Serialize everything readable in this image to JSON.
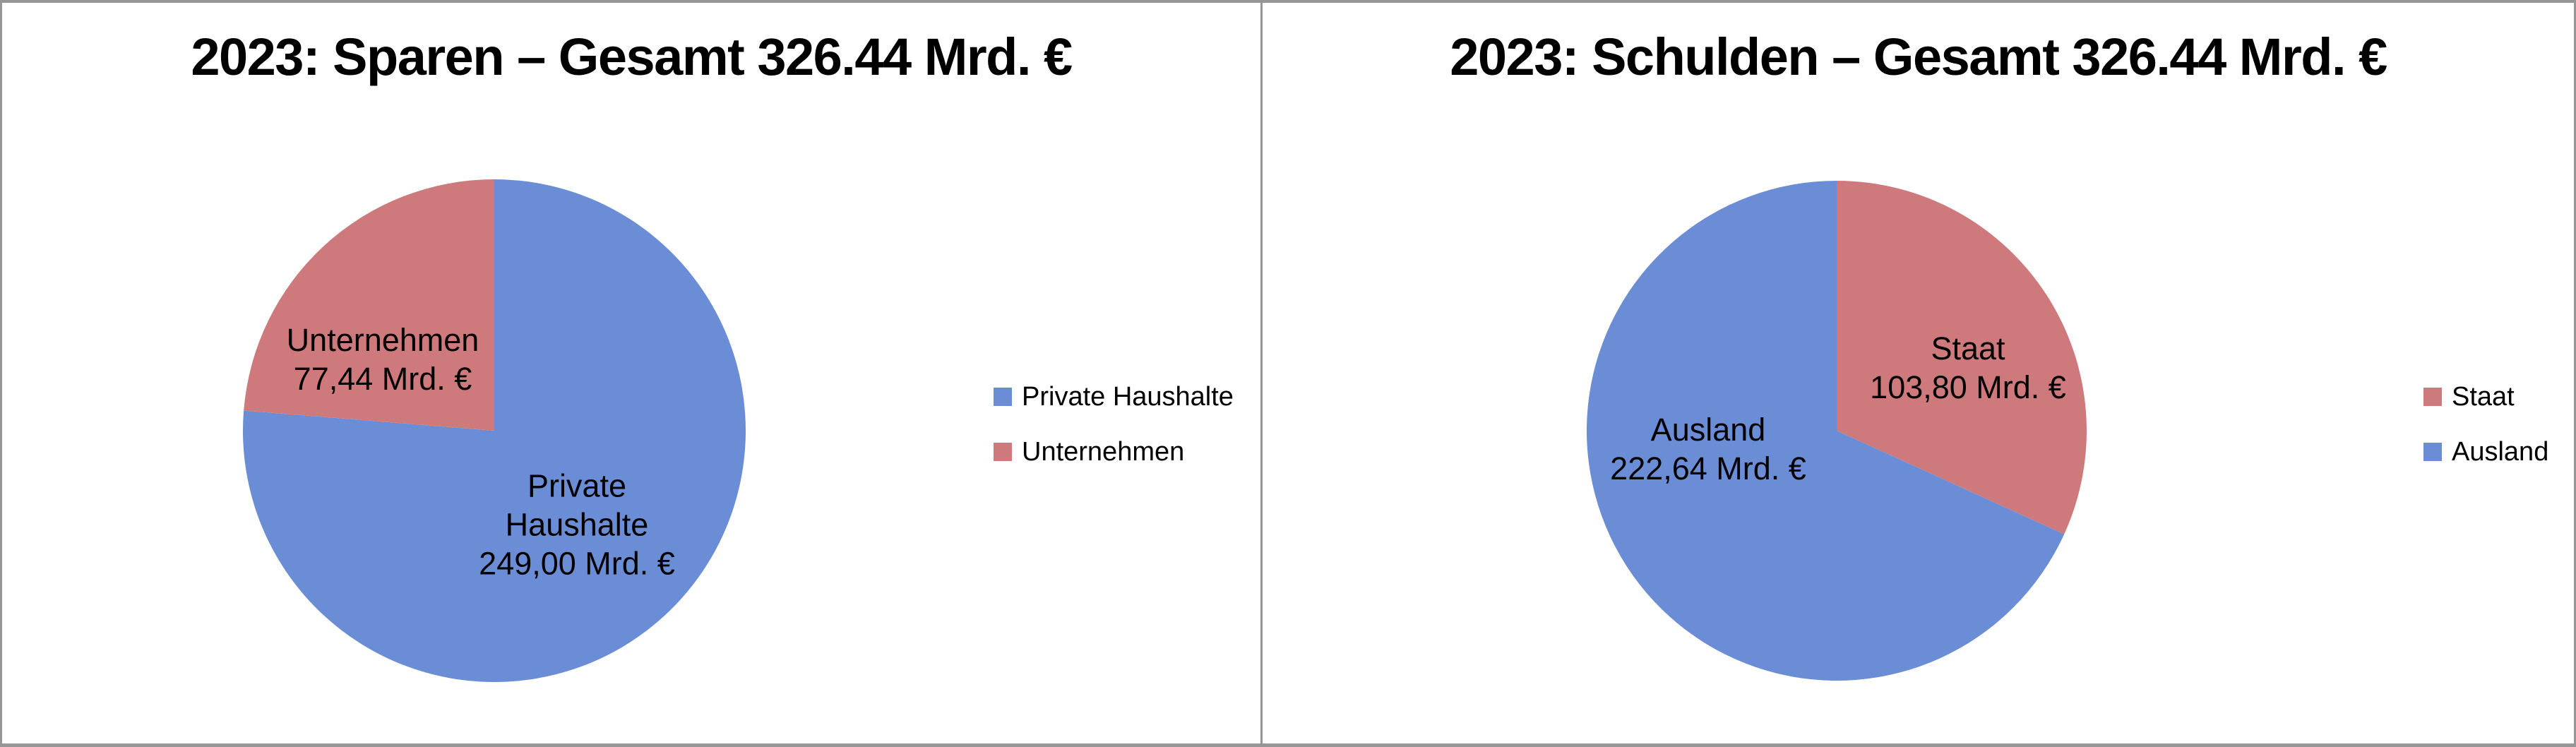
{
  "frame": {
    "background": "#ffffff",
    "border_color": "#969696"
  },
  "chart_data": [
    {
      "type": "pie",
      "title": "2023: Sparen – Gesamt 326.44 Mrd. €",
      "total": 326.44,
      "unit": "Mrd. €",
      "categories": [
        "Private Haushalte",
        "Unternehmen"
      ],
      "values": [
        249.0,
        77.44
      ],
      "start_angle_deg": 0,
      "direction": "clockwise",
      "legend_position": "right",
      "slices": [
        {
          "name": "Private Haushalte",
          "value": 249.0,
          "value_label": "249,00 Mrd. €",
          "color": "#6B8DD6"
        },
        {
          "name": "Unternehmen",
          "value": 77.44,
          "value_label": "77,44 Mrd. €",
          "color": "#CE7A7D"
        }
      ],
      "slice_labels": [
        {
          "lines": [
            "Private",
            "Haushalte",
            "249,00 Mrd. €"
          ]
        },
        {
          "lines": [
            "Unternehmen",
            "77,44 Mrd. €"
          ]
        }
      ],
      "legend": {
        "entries": [
          {
            "label": "Private Haushalte",
            "color": "#6B8DD6"
          },
          {
            "label": "Unternehmen",
            "color": "#CE7A7D"
          }
        ]
      }
    },
    {
      "type": "pie",
      "title": "2023: Schulden – Gesamt 326.44 Mrd. €",
      "total": 326.44,
      "unit": "Mrd. €",
      "categories": [
        "Staat",
        "Ausland"
      ],
      "values": [
        103.8,
        222.64
      ],
      "start_angle_deg": 0,
      "direction": "clockwise",
      "legend_position": "right",
      "slices": [
        {
          "name": "Staat",
          "value": 103.8,
          "value_label": "103,80 Mrd. €",
          "color": "#CE7A7D"
        },
        {
          "name": "Ausland",
          "value": 222.64,
          "value_label": "222,64 Mrd. €",
          "color": "#6B8DD6"
        }
      ],
      "slice_labels": [
        {
          "lines": [
            "Staat",
            "103,80 Mrd. €"
          ]
        },
        {
          "lines": [
            "Ausland",
            "222,64 Mrd. €"
          ]
        }
      ],
      "legend": {
        "entries": [
          {
            "label": "Staat",
            "color": "#CE7A7D"
          },
          {
            "label": "Ausland",
            "color": "#6B8DD6"
          }
        ]
      }
    }
  ]
}
